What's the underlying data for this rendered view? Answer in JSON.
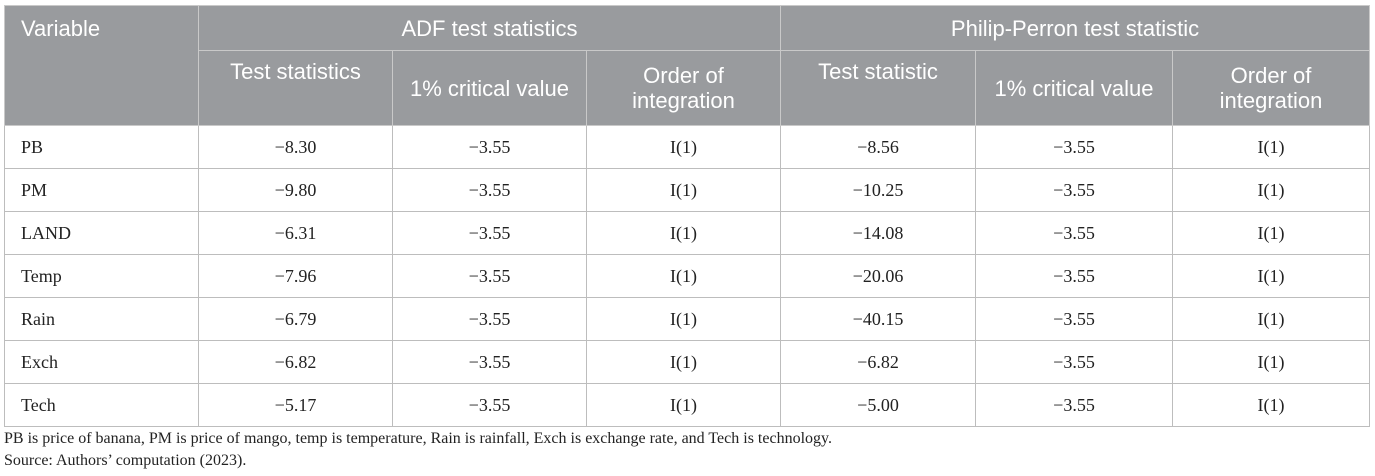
{
  "header": {
    "variable": "Variable",
    "adf_group": "ADF test statistics",
    "pp_group": "Philip-Perron test statistic",
    "adf_columns": [
      "Test statistics",
      "1% critical value",
      "Order of integration"
    ],
    "pp_columns": [
      "Test statistic",
      "1% critical value",
      "Order of integration"
    ]
  },
  "rows": [
    {
      "variable": "PB",
      "adf_stat": "−8.30",
      "adf_crit": "−3.55",
      "adf_order": "I(1)",
      "pp_stat": "−8.56",
      "pp_crit": "−3.55",
      "pp_order": "I(1)"
    },
    {
      "variable": "PM",
      "adf_stat": "−9.80",
      "adf_crit": "−3.55",
      "adf_order": "I(1)",
      "pp_stat": "−10.25",
      "pp_crit": "−3.55",
      "pp_order": "I(1)"
    },
    {
      "variable": "LAND",
      "adf_stat": "−6.31",
      "adf_crit": "−3.55",
      "adf_order": "I(1)",
      "pp_stat": "−14.08",
      "pp_crit": "−3.55",
      "pp_order": "I(1)"
    },
    {
      "variable": "Temp",
      "adf_stat": "−7.96",
      "adf_crit": "−3.55",
      "adf_order": "I(1)",
      "pp_stat": "−20.06",
      "pp_crit": "−3.55",
      "pp_order": "I(1)"
    },
    {
      "variable": "Rain",
      "adf_stat": "−6.79",
      "adf_crit": "−3.55",
      "adf_order": "I(1)",
      "pp_stat": "−40.15",
      "pp_crit": "−3.55",
      "pp_order": "I(1)"
    },
    {
      "variable": "Exch",
      "adf_stat": "−6.82",
      "adf_crit": "−3.55",
      "adf_order": "I(1)",
      "pp_stat": "−6.82",
      "pp_crit": "−3.55",
      "pp_order": "I(1)"
    },
    {
      "variable": "Tech",
      "adf_stat": "−5.17",
      "adf_crit": "−3.55",
      "adf_order": "I(1)",
      "pp_stat": "−5.00",
      "pp_crit": "−3.55",
      "pp_order": "I(1)"
    }
  ],
  "footnotes": {
    "abbreviations": "PB is price of banana, PM is price of mango, temp is temperature, Rain is rainfall, Exch is exchange rate, and Tech is technology.",
    "source": "Source: Authors’ computation (2023)."
  },
  "colors": {
    "header_bg": "#999b9e",
    "header_text": "#ffffff",
    "border": "#bdbdbd"
  }
}
